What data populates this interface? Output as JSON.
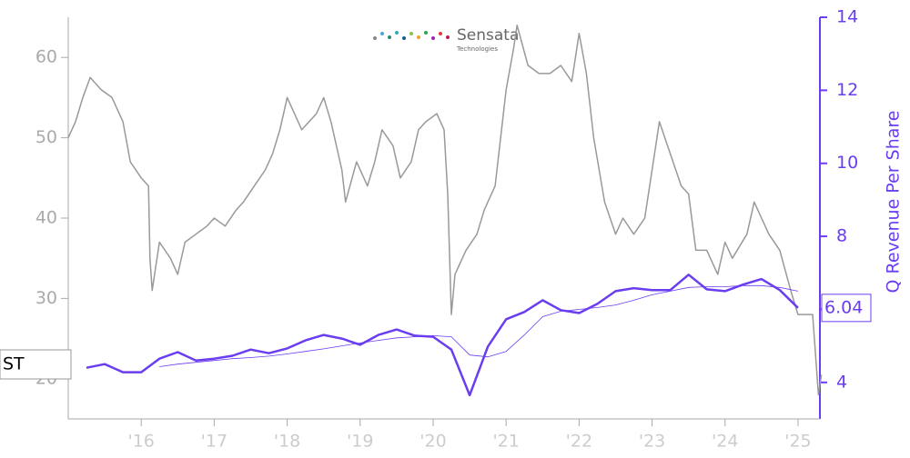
{
  "chart_data": {
    "type": "line",
    "logo": {
      "name": "Sensata",
      "tagline": "Technologies"
    },
    "ticker": "ST",
    "end_value": 6.04,
    "y2label": "Q Revenue Per Share",
    "xlim": [
      2015,
      2025.3
    ],
    "xticks": [
      {
        "value": 2016,
        "label": "'16"
      },
      {
        "value": 2017,
        "label": "'17"
      },
      {
        "value": 2018,
        "label": "'18"
      },
      {
        "value": 2019,
        "label": "'19"
      },
      {
        "value": 2020,
        "label": "'20"
      },
      {
        "value": 2021,
        "label": "'21"
      },
      {
        "value": 2022,
        "label": "'22"
      },
      {
        "value": 2023,
        "label": "'23"
      },
      {
        "value": 2024,
        "label": "'24"
      },
      {
        "value": 2025,
        "label": "'25"
      }
    ],
    "ylim": [
      15,
      65
    ],
    "yticks": [
      20,
      30,
      40,
      50,
      60
    ],
    "y2lim": [
      3,
      14
    ],
    "y2ticks": [
      4,
      6,
      8,
      10,
      12,
      14
    ],
    "series": [
      {
        "color": "#999999",
        "axis": "y",
        "width": 1.5,
        "x": [
          2015.0,
          2015.1,
          2015.2,
          2015.3,
          2015.45,
          2015.6,
          2015.75,
          2015.85,
          2016.0,
          2016.1,
          2016.12,
          2016.15,
          2016.25,
          2016.4,
          2016.5,
          2016.6,
          2016.75,
          2016.9,
          2017.0,
          2017.15,
          2017.3,
          2017.4,
          2017.55,
          2017.7,
          2017.8,
          2017.9,
          2018.0,
          2018.1,
          2018.2,
          2018.4,
          2018.5,
          2018.6,
          2018.75,
          2018.8,
          2018.95,
          2019.1,
          2019.2,
          2019.3,
          2019.45,
          2019.55,
          2019.7,
          2019.8,
          2019.9,
          2020.05,
          2020.15,
          2020.2,
          2020.25,
          2020.3,
          2020.45,
          2020.6,
          2020.7,
          2020.85,
          2021.0,
          2021.1,
          2021.15,
          2021.3,
          2021.45,
          2021.6,
          2021.75,
          2021.9,
          2022.0,
          2022.1,
          2022.2,
          2022.35,
          2022.5,
          2022.6,
          2022.75,
          2022.9,
          2023.0,
          2023.1,
          2023.25,
          2023.4,
          2023.5,
          2023.6,
          2023.75,
          2023.9,
          2024.0,
          2024.1,
          2024.3,
          2024.4,
          2024.5,
          2024.6,
          2024.75,
          2024.9,
          2025.0,
          2025.1,
          2025.2,
          2025.28,
          2025.32
        ],
        "values": [
          50,
          52,
          55,
          57.5,
          56,
          55,
          52,
          47,
          45,
          44,
          35,
          31,
          37,
          35,
          33,
          37,
          38,
          39,
          40,
          39,
          41,
          42,
          44,
          46,
          48,
          51,
          55,
          53,
          51,
          53,
          55,
          52,
          46,
          42,
          47,
          44,
          47,
          51,
          49,
          45,
          47,
          51,
          52,
          53,
          51,
          43,
          28,
          33,
          36,
          38,
          41,
          44,
          56,
          61,
          64,
          59,
          58,
          58,
          59,
          57,
          63,
          58,
          50,
          42,
          38,
          40,
          38,
          40,
          46,
          52,
          48,
          44,
          43,
          36,
          36,
          33,
          37,
          35,
          38,
          42,
          40,
          38,
          36,
          31,
          28,
          28,
          28,
          18,
          20.5
        ]
      },
      {
        "color": "#6a3df0",
        "axis": "y2",
        "width": 2.5,
        "x": [
          2015.25,
          2015.5,
          2015.75,
          2016,
          2016.25,
          2016.5,
          2016.75,
          2017,
          2017.25,
          2017.5,
          2017.75,
          2018,
          2018.25,
          2018.5,
          2018.75,
          2019,
          2019.25,
          2019.5,
          2019.75,
          2020,
          2020.25,
          2020.5,
          2020.75,
          2021,
          2021.25,
          2021.5,
          2021.75,
          2022,
          2022.25,
          2022.5,
          2022.75,
          2023,
          2023.25,
          2023.5,
          2023.75,
          2024,
          2024.25,
          2024.5,
          2024.75,
          2025
        ],
        "values": [
          4.4,
          4.5,
          4.28,
          4.28,
          4.65,
          4.83,
          4.6,
          4.65,
          4.73,
          4.9,
          4.8,
          4.93,
          5.15,
          5.3,
          5.2,
          5.03,
          5.3,
          5.45,
          5.28,
          5.25,
          4.9,
          3.65,
          4.98,
          5.73,
          5.93,
          6.25,
          5.98,
          5.9,
          6.15,
          6.5,
          6.58,
          6.53,
          6.53,
          6.95,
          6.55,
          6.5,
          6.68,
          6.83,
          6.53,
          6.04
        ]
      },
      {
        "color": "#6a3df0",
        "axis": "y2",
        "width": 0.8,
        "x": [
          2015.25,
          2015.5,
          2015.75,
          2016,
          2016.25,
          2016.5,
          2016.75,
          2017,
          2017.25,
          2017.5,
          2017.75,
          2018,
          2018.25,
          2018.5,
          2018.75,
          2019,
          2019.25,
          2019.5,
          2019.75,
          2020,
          2020.25,
          2020.5,
          2020.75,
          2021,
          2021.25,
          2021.5,
          2021.75,
          2022,
          2022.25,
          2022.5,
          2022.75,
          2023,
          2023.25,
          2023.5,
          2023.75,
          2024,
          2024.25,
          2024.5,
          2024.75,
          2025
        ],
        "values": [
          null,
          null,
          null,
          null,
          4.43,
          4.5,
          4.55,
          4.6,
          4.65,
          4.68,
          4.72,
          4.78,
          4.85,
          4.92,
          5.0,
          5.08,
          5.15,
          5.22,
          5.25,
          5.28,
          5.25,
          4.75,
          4.7,
          4.85,
          5.3,
          5.8,
          5.95,
          6.0,
          6.05,
          6.12,
          6.25,
          6.4,
          6.5,
          6.6,
          6.62,
          6.62,
          6.65,
          6.65,
          6.6,
          6.5
        ]
      }
    ]
  }
}
